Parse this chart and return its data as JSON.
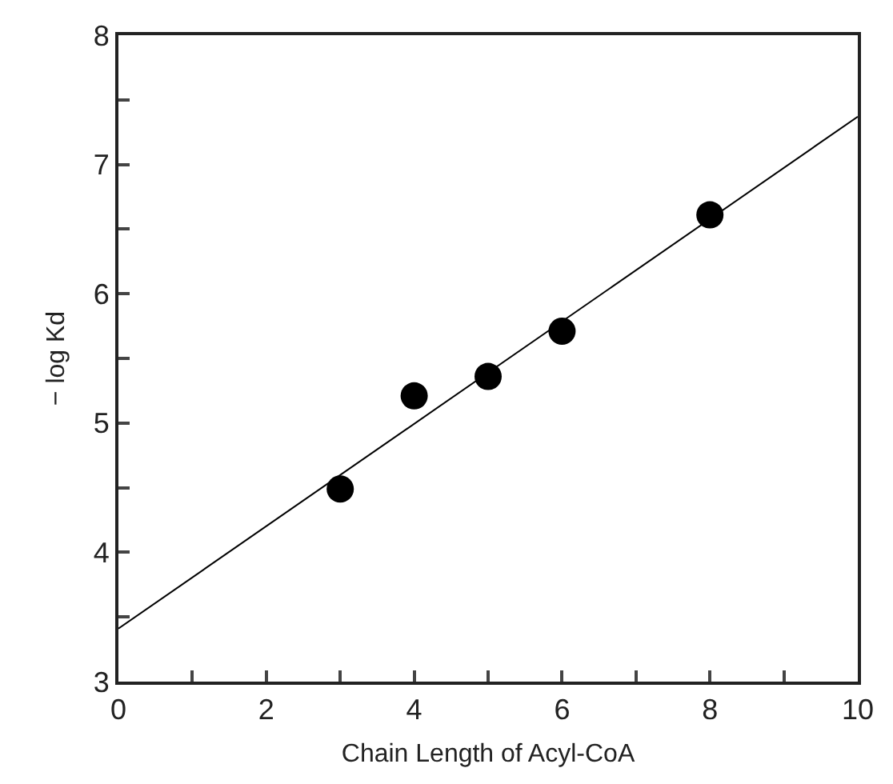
{
  "chart_data": {
    "type": "scatter",
    "xlabel": "Chain Length of Acyl-CoA",
    "ylabel": "− log Kd",
    "x": [
      3,
      4,
      5,
      6,
      8
    ],
    "series": [
      {
        "color": "#000000",
        "marker": "circle",
        "values": [
          4.49,
          5.21,
          5.36,
          5.71,
          6.61
        ]
      },
      {
        "type": "line",
        "color": "#000000",
        "marker": "none",
        "line_style": "solid",
        "x": [
          0,
          10
        ],
        "values": [
          3.41,
          7.37
        ]
      }
    ],
    "xlim": [
      0,
      10
    ],
    "ylim": [
      3,
      8
    ],
    "xticks": [
      0,
      {
        "value": 1,
        "label": null
      },
      2,
      {
        "value": 3,
        "label": null
      },
      4,
      {
        "value": 5,
        "label": null
      },
      6,
      {
        "value": 7,
        "label": null
      },
      8,
      {
        "value": 9,
        "label": null
      },
      10
    ],
    "yticks": [
      3,
      {
        "value": 3.5,
        "label": null
      },
      4,
      {
        "value": 4.5,
        "label": null
      },
      5,
      {
        "value": 5.5,
        "label": null
      },
      6,
      {
        "value": 6.5,
        "label": null
      },
      7,
      {
        "value": 7.5,
        "label": null
      },
      8
    ],
    "grid": false
  }
}
